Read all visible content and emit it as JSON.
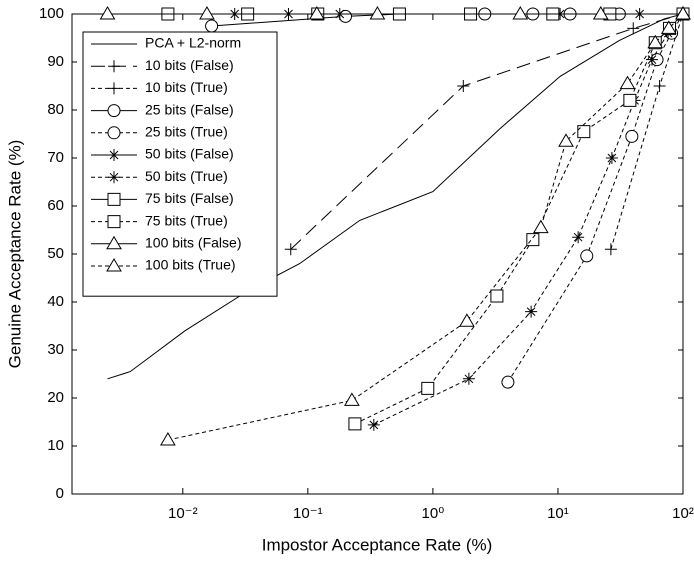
{
  "chart_data": {
    "type": "line",
    "xlabel": "Impostor Acceptance Rate (%)",
    "ylabel": "Genuine Acceptance Rate (%)",
    "xscale": "log",
    "xlim": [
      0.0013,
      100
    ],
    "ylim": [
      0,
      100
    ],
    "xticks": [
      {
        "value": 0.01,
        "label": "10⁻²"
      },
      {
        "value": 0.1,
        "label": "10⁻¹"
      },
      {
        "value": 1,
        "label": "10⁰"
      },
      {
        "value": 10,
        "label": "10¹"
      },
      {
        "value": 100,
        "label": "10²"
      }
    ],
    "yticks": [
      0,
      10,
      20,
      30,
      40,
      50,
      60,
      70,
      80,
      90,
      100
    ],
    "legend": "upper left",
    "series": [
      {
        "name": "PCA + L2-norm",
        "color": "#000000",
        "linestyle": "solid",
        "x": [
          0.0025,
          0.0038,
          0.0104,
          0.034,
          0.086,
          0.26,
          1,
          3.4,
          10.4,
          31,
          71,
          100
        ],
        "values": [
          24,
          25.5,
          34,
          42.5,
          48,
          57,
          63,
          76,
          87,
          94.5,
          99,
          100
        ]
      },
      {
        "name": "10 bits (False)",
        "color": "#000000",
        "linestyle": "longdash",
        "marker": "plus",
        "x": [
          0.073,
          1.75,
          40,
          100
        ],
        "values": [
          51,
          85,
          97,
          100
        ]
      },
      {
        "name": "10 bits (True)",
        "color": "#000000",
        "linestyle": "dash",
        "marker": "plus",
        "x": [
          26.5,
          65,
          100
        ],
        "values": [
          51,
          85,
          100
        ]
      },
      {
        "name": "25 bits (False)",
        "color": "#000000",
        "linestyle": "solid",
        "marker": "circle",
        "x": [
          0.017,
          0.2,
          0.54,
          2.6,
          6.3,
          12.5,
          31,
          100
        ],
        "values": [
          97.5,
          99.5,
          100,
          100,
          100,
          100,
          100,
          100
        ]
      },
      {
        "name": "25 bits (True)",
        "color": "#000000",
        "linestyle": "dash",
        "marker": "circle",
        "x": [
          3.98,
          17,
          39,
          62,
          81,
          100
        ],
        "values": [
          23.3,
          49.6,
          74.5,
          90.5,
          96,
          100
        ]
      },
      {
        "name": "50 bits (False)",
        "color": "#000000",
        "linestyle": "solid",
        "marker": "star",
        "x": [
          0.026,
          0.07,
          0.18,
          2,
          10.4,
          45,
          100
        ],
        "values": [
          100,
          100,
          100,
          100,
          100,
          100,
          100
        ]
      },
      {
        "name": "50 bits (True)",
        "color": "#000000",
        "linestyle": "dash",
        "marker": "star",
        "x": [
          0.337,
          1.94,
          6.1,
          14.5,
          27,
          41,
          56.5,
          76,
          100
        ],
        "values": [
          14.4,
          24,
          38,
          53.5,
          70,
          82,
          90.5,
          96,
          100
        ]
      },
      {
        "name": "75 bits (False)",
        "color": "#000000",
        "linestyle": "solid",
        "marker": "square",
        "x": [
          0.0076,
          0.033,
          0.12,
          0.54,
          2,
          9.1,
          26,
          100
        ],
        "values": [
          100,
          100,
          100,
          100,
          100,
          100,
          100,
          100
        ]
      },
      {
        "name": "75 bits (True)",
        "color": "#000000",
        "linestyle": "dash",
        "marker": "square",
        "x": [
          0.238,
          0.91,
          3.25,
          6.3,
          16.1,
          37.6,
          60,
          78,
          100
        ],
        "values": [
          14.6,
          22,
          41.25,
          53,
          75.5,
          82,
          94,
          97,
          100
        ]
      },
      {
        "name": "100 bits (False)",
        "color": "#000000",
        "linestyle": "solid",
        "marker": "triangle",
        "x": [
          0.0025,
          0.0156,
          0.118,
          0.36,
          5,
          22,
          100
        ],
        "values": [
          100,
          100,
          100,
          100,
          100,
          100,
          100
        ]
      },
      {
        "name": "100 bits (True)",
        "color": "#000000",
        "linestyle": "dash",
        "marker": "triangle",
        "x": [
          0.0076,
          0.225,
          1.87,
          7.3,
          11.6,
          36,
          60,
          77,
          100
        ],
        "values": [
          11.25,
          19.5,
          36,
          55.5,
          73.5,
          85.5,
          94,
          97,
          100
        ]
      }
    ]
  }
}
